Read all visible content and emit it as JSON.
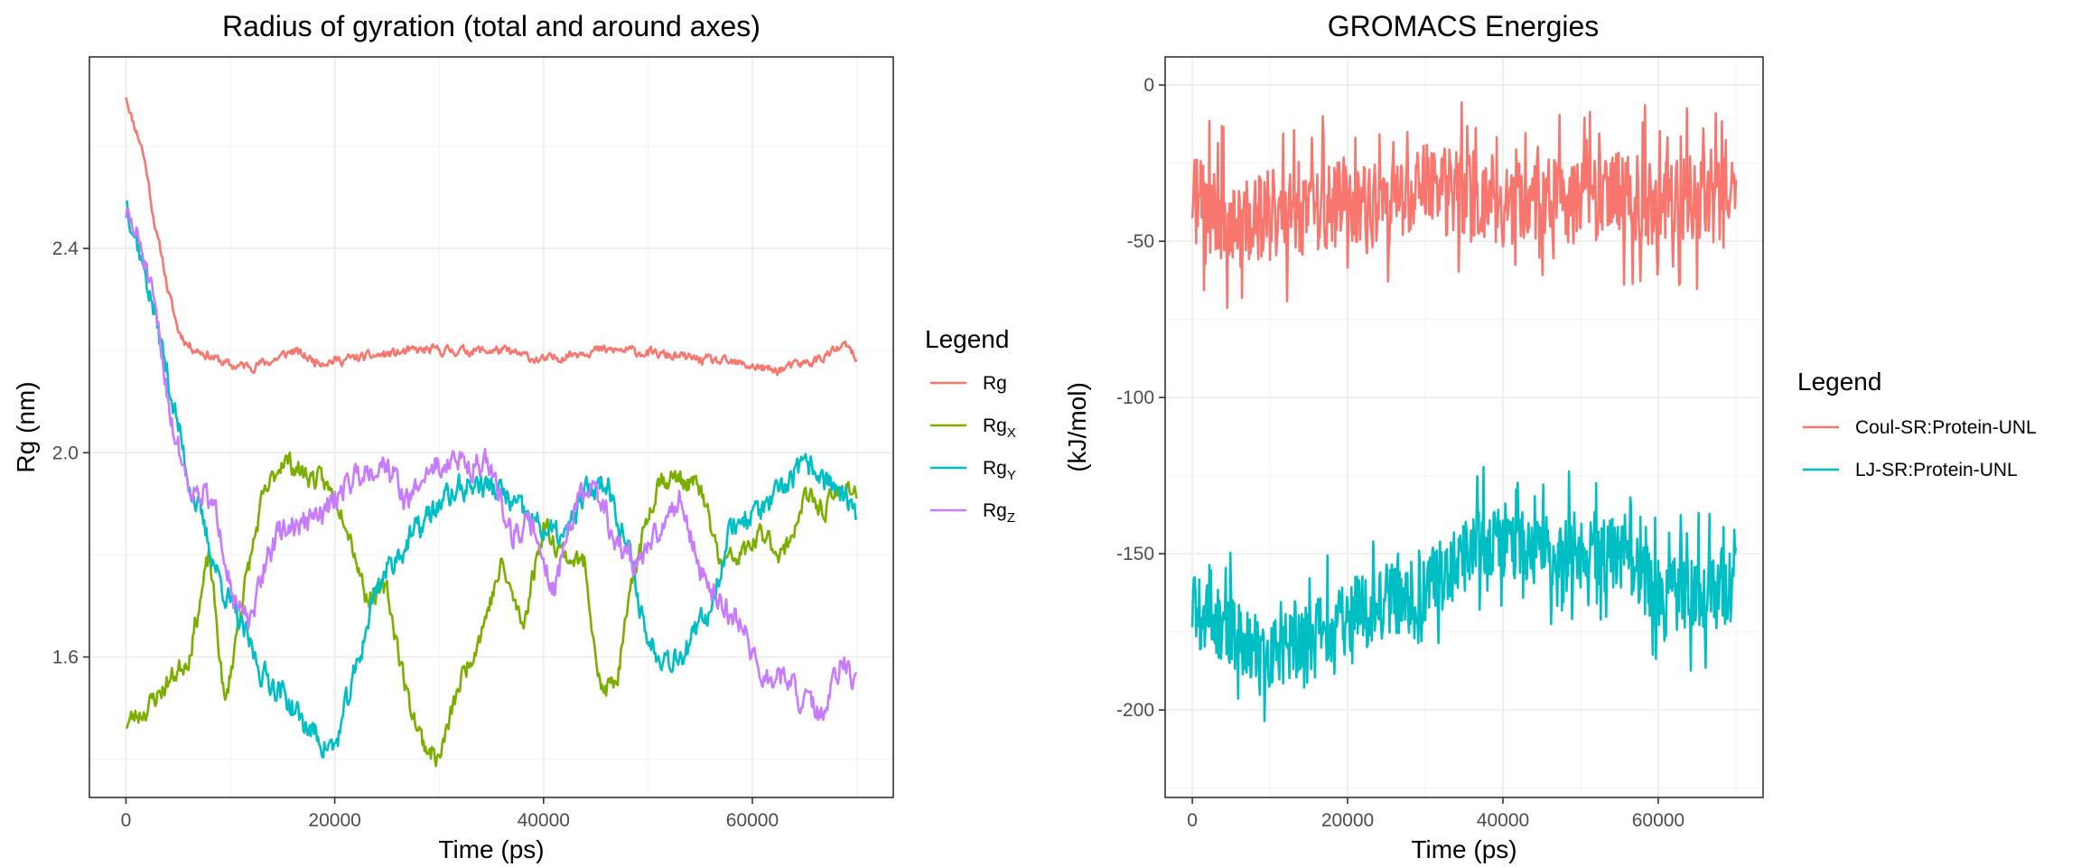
{
  "chart_data": [
    {
      "type": "line",
      "title": "Radius of gyration (total and around axes)",
      "xlabel": "Time (ps)",
      "ylabel": "Rg (nm)",
      "xlim": [
        -3500,
        73500
      ],
      "ylim": [
        1.325,
        2.775
      ],
      "xticks": [
        0,
        20000,
        40000,
        60000
      ],
      "xtick_labels": [
        "0",
        "20000",
        "40000",
        "60000"
      ],
      "yticks": [
        1.6,
        2.0,
        2.4
      ],
      "ytick_labels": [
        "1.6",
        "2.0",
        "2.4"
      ],
      "legend_title": "Legend",
      "legend_position": "right",
      "series": [
        {
          "name": "Rg",
          "base": "Rg",
          "sub": "",
          "color": "#F8766D",
          "x": [
            0,
            500,
            1000,
            1500,
            2000,
            2500,
            3000,
            3500,
            4000,
            5000,
            6000,
            7000,
            8000,
            9000,
            10000,
            12000,
            14000,
            16000,
            18000,
            20000,
            24000,
            28000,
            32000,
            36000,
            40000,
            44000,
            48000,
            52000,
            56000,
            60000,
            62000,
            64000,
            66000,
            68000,
            69000,
            70000
          ],
          "values": [
            2.7,
            2.66,
            2.63,
            2.6,
            2.55,
            2.48,
            2.42,
            2.38,
            2.32,
            2.24,
            2.21,
            2.2,
            2.19,
            2.18,
            2.17,
            2.17,
            2.18,
            2.2,
            2.18,
            2.18,
            2.19,
            2.2,
            2.2,
            2.2,
            2.18,
            2.2,
            2.2,
            2.19,
            2.18,
            2.17,
            2.16,
            2.17,
            2.18,
            2.2,
            2.21,
            2.18
          ],
          "noise": 0.008,
          "seed": 11
        },
        {
          "name": "RgX",
          "base": "Rg",
          "sub": "X",
          "color": "#7CAE00",
          "x": [
            0,
            2000,
            4000,
            6000,
            8000,
            9500,
            11000,
            13000,
            15000,
            17000,
            19000,
            21000,
            23000,
            25000,
            27000,
            28500,
            30000,
            32000,
            34000,
            36000,
            38000,
            40000,
            42000,
            44000,
            45500,
            47000,
            49000,
            51000,
            53000,
            55000,
            57000,
            59000,
            61000,
            63000,
            65000,
            67000,
            69000,
            70000
          ],
          "values": [
            1.47,
            1.5,
            1.55,
            1.6,
            1.8,
            1.5,
            1.7,
            1.9,
            1.99,
            1.96,
            1.94,
            1.88,
            1.72,
            1.73,
            1.52,
            1.43,
            1.4,
            1.55,
            1.65,
            1.78,
            1.66,
            1.86,
            1.8,
            1.78,
            1.53,
            1.55,
            1.8,
            1.95,
            1.95,
            1.93,
            1.78,
            1.8,
            1.84,
            1.8,
            1.91,
            1.89,
            1.94,
            1.92
          ],
          "noise": 0.018,
          "seed": 23
        },
        {
          "name": "RgY",
          "base": "Rg",
          "sub": "Y",
          "color": "#00BFC4",
          "x": [
            0,
            1500,
            3000,
            4500,
            6000,
            7500,
            9000,
            11000,
            13000,
            15000,
            17000,
            19000,
            20000,
            22000,
            24000,
            26000,
            28000,
            30000,
            32000,
            34000,
            36000,
            38000,
            40000,
            42000,
            44000,
            46000,
            48000,
            50000,
            52000,
            54000,
            56000,
            58000,
            60000,
            62000,
            64000,
            66000,
            68000,
            70000
          ],
          "values": [
            2.5,
            2.38,
            2.25,
            2.1,
            1.95,
            1.85,
            1.75,
            1.66,
            1.57,
            1.53,
            1.47,
            1.43,
            1.42,
            1.57,
            1.74,
            1.8,
            1.85,
            1.9,
            1.93,
            1.94,
            1.92,
            1.88,
            1.85,
            1.83,
            1.92,
            1.95,
            1.82,
            1.63,
            1.6,
            1.62,
            1.7,
            1.86,
            1.88,
            1.9,
            1.96,
            1.97,
            1.93,
            1.87
          ],
          "noise": 0.022,
          "seed": 37
        },
        {
          "name": "RgZ",
          "base": "Rg",
          "sub": "Z",
          "color": "#C77CFF",
          "x": [
            0,
            1500,
            3000,
            4500,
            6000,
            7500,
            9000,
            10500,
            12000,
            13500,
            15000,
            17000,
            19000,
            21000,
            23000,
            25000,
            27000,
            29000,
            31000,
            33000,
            35000,
            37000,
            39000,
            41000,
            43000,
            45000,
            47000,
            49000,
            51000,
            53000,
            55000,
            57000,
            59000,
            61000,
            63000,
            65000,
            67000,
            68500,
            70000
          ],
          "values": [
            2.47,
            2.4,
            2.25,
            2.05,
            1.94,
            1.92,
            1.86,
            1.7,
            1.66,
            1.8,
            1.85,
            1.86,
            1.88,
            1.94,
            1.97,
            1.98,
            1.9,
            1.97,
            1.98,
            1.98,
            1.97,
            1.84,
            1.86,
            1.73,
            1.9,
            1.93,
            1.82,
            1.78,
            1.84,
            1.92,
            1.77,
            1.7,
            1.67,
            1.55,
            1.56,
            1.51,
            1.48,
            1.6,
            1.53
          ],
          "noise": 0.022,
          "seed": 51
        }
      ]
    },
    {
      "type": "line",
      "title": "GROMACS Energies",
      "xlabel": "Time (ps)",
      "ylabel": "(kJ/mol)",
      "xlim": [
        -3500,
        73500
      ],
      "ylim": [
        -228,
        9
      ],
      "xticks": [
        0,
        20000,
        40000,
        60000
      ],
      "xtick_labels": [
        "0",
        "20000",
        "40000",
        "60000"
      ],
      "yticks": [
        0,
        -50,
        -100,
        -150,
        -200
      ],
      "ytick_labels": [
        "0",
        "-50",
        "-100",
        "-150",
        "-200"
      ],
      "legend_title": "Legend",
      "legend_position": "right",
      "series": [
        {
          "name": "Coul-SR:Protein-UNL",
          "base": "Coul-SR:Protein-UNL",
          "sub": "",
          "color": "#F8766D",
          "x": [
            0,
            5000,
            10000,
            15000,
            20000,
            25000,
            30000,
            35000,
            40000,
            45000,
            50000,
            55000,
            60000,
            65000,
            70000
          ],
          "values": [
            -36,
            -45,
            -42,
            -40,
            -38,
            -40,
            -32,
            -36,
            -38,
            -36,
            -38,
            -34,
            -38,
            -36,
            -35
          ],
          "noise": 14,
          "seed": 71,
          "spike": 0.18
        },
        {
          "name": "LJ-SR:Protein-UNL",
          "base": "LJ-SR:Protein-UNL",
          "sub": "",
          "color": "#00BFC4",
          "x": [
            0,
            5000,
            10000,
            15000,
            20000,
            25000,
            30000,
            35000,
            40000,
            45000,
            50000,
            55000,
            60000,
            65000,
            70000
          ],
          "values": [
            -168,
            -175,
            -182,
            -176,
            -170,
            -166,
            -162,
            -150,
            -145,
            -150,
            -148,
            -152,
            -162,
            -162,
            -160
          ],
          "noise": 12,
          "seed": 89,
          "spike": 0.18
        }
      ]
    }
  ]
}
